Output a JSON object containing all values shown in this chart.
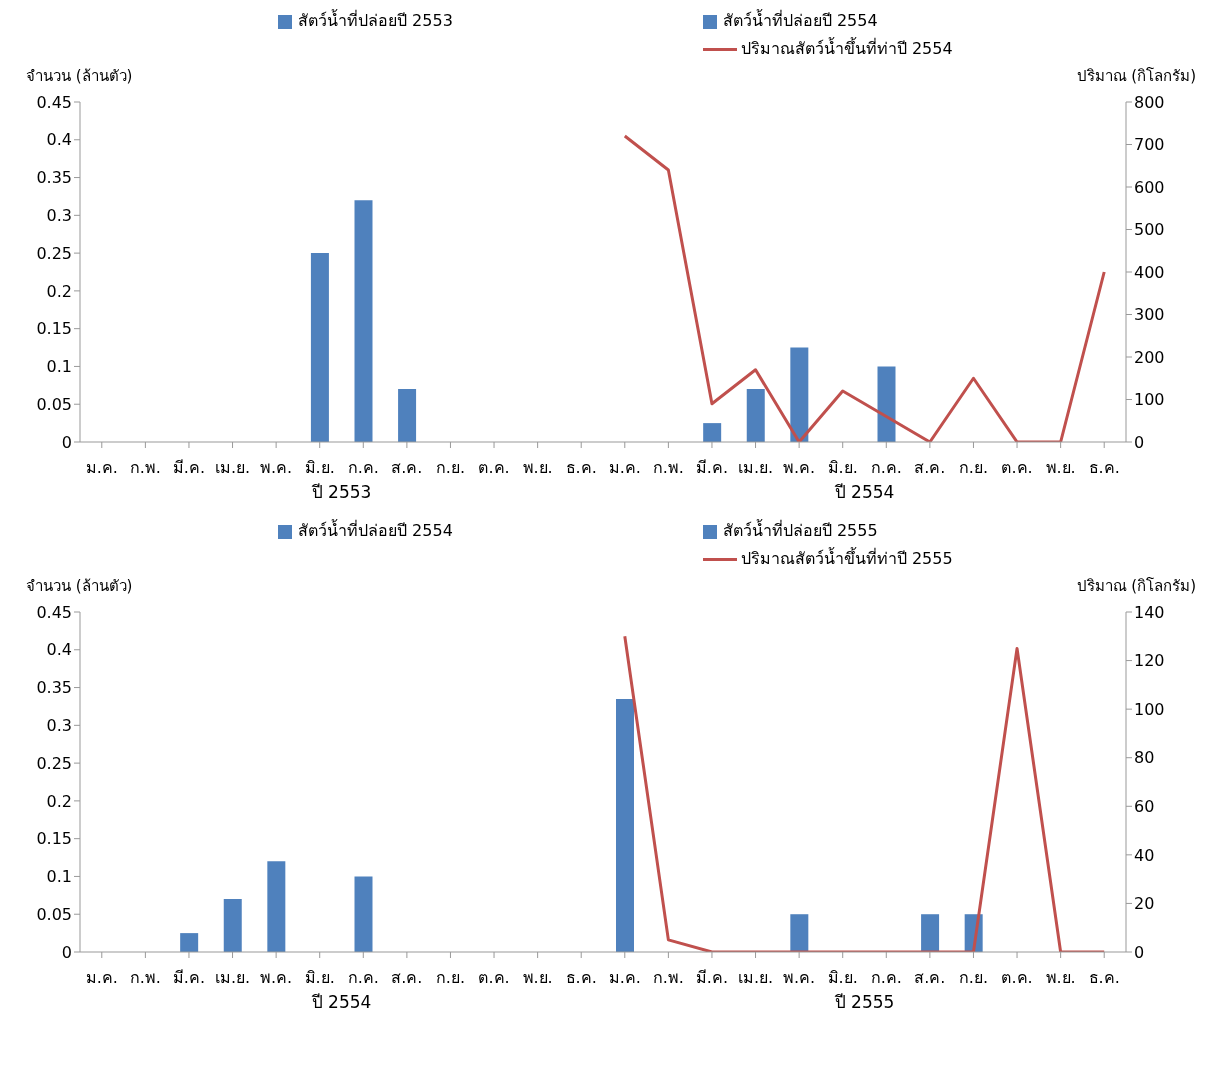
{
  "chart_data": [
    {
      "type": "bar",
      "categories": [
        "ม.ค.",
        "ก.พ.",
        "มี.ค.",
        "เม.ย.",
        "พ.ค.",
        "มิ.ย.",
        "ก.ค.",
        "ส.ค.",
        "ก.ย.",
        "ต.ค.",
        "พ.ย.",
        "ธ.ค.",
        "ม.ค.",
        "ก.พ.",
        "มี.ค.",
        "เม.ย.",
        "พ.ค.",
        "มิ.ย.",
        "ก.ค.",
        "ส.ค.",
        "ก.ย.",
        "ต.ค.",
        "พ.ย.",
        "ธ.ค."
      ],
      "series": [
        {
          "name": "สัตว์น้ำที่ปล่อยปี 2553",
          "color": "#4f81bd",
          "values": [
            0,
            0,
            0,
            0,
            0,
            0.25,
            0.32,
            0.07,
            0,
            0,
            0,
            0,
            null,
            null,
            null,
            null,
            null,
            null,
            null,
            null,
            null,
            null,
            null,
            null
          ]
        },
        {
          "name": "สัตว์น้ำที่ปล่อยปี 2554",
          "color": "#4f81bd",
          "values": [
            null,
            null,
            null,
            null,
            null,
            null,
            null,
            null,
            null,
            null,
            null,
            null,
            0,
            0,
            0.025,
            0.07,
            0.125,
            0,
            0.1,
            0,
            0,
            0,
            0,
            0
          ]
        },
        {
          "name": "ปริมาณสัตว์น้ำขึ้นที่ท่าปี 2554",
          "type": "line",
          "axis": "y2",
          "color": "#c0504d",
          "values": [
            null,
            null,
            null,
            null,
            null,
            null,
            null,
            null,
            null,
            null,
            null,
            null,
            720,
            640,
            90,
            170,
            0,
            120,
            60,
            0,
            150,
            0,
            0,
            400
          ]
        }
      ],
      "stacked": true,
      "ylabel": "จำนวน (ล้านตัว)",
      "y2label": "ปริมาณ (กิโลกรัม)",
      "ylim": [
        0,
        0.45
      ],
      "yticks": [
        0,
        0.05,
        0.1,
        0.15,
        0.2,
        0.25,
        0.3,
        0.35,
        0.4,
        0.45
      ],
      "y2lim": [
        0,
        800
      ],
      "y2ticks": [
        0,
        100,
        200,
        300,
        400,
        500,
        600,
        700,
        800
      ],
      "annotations": [
        "ปี 2553",
        "ปี 2554"
      ],
      "legend": "top",
      "grid": false
    },
    {
      "type": "bar",
      "categories": [
        "ม.ค.",
        "ก.พ.",
        "มี.ค.",
        "เม.ย.",
        "พ.ค.",
        "มิ.ย.",
        "ก.ค.",
        "ส.ค.",
        "ก.ย.",
        "ต.ค.",
        "พ.ย.",
        "ธ.ค.",
        "ม.ค.",
        "ก.พ.",
        "มี.ค.",
        "เม.ย.",
        "พ.ค.",
        "มิ.ย.",
        "ก.ค.",
        "ส.ค.",
        "ก.ย.",
        "ต.ค.",
        "พ.ย.",
        "ธ.ค."
      ],
      "series": [
        {
          "name": "สัตว์น้ำที่ปล่อยปี 2554",
          "color": "#4f81bd",
          "values": [
            0,
            0,
            0.025,
            0.07,
            0.12,
            0,
            0.1,
            0,
            0,
            0,
            0,
            0,
            null,
            null,
            null,
            null,
            null,
            null,
            null,
            null,
            null,
            null,
            null,
            null
          ]
        },
        {
          "name": "สัตว์น้ำที่ปล่อยปี 2555",
          "color": "#4f81bd",
          "values": [
            null,
            null,
            null,
            null,
            null,
            null,
            null,
            null,
            null,
            null,
            null,
            null,
            0.335,
            0,
            0,
            0,
            0.05,
            0,
            0,
            0.05,
            0.05,
            0,
            0,
            0
          ]
        },
        {
          "name": "ปริมาณสัตว์น้ำขึ้นที่ท่าปี 2555",
          "type": "line",
          "axis": "y2",
          "color": "#c0504d",
          "values": [
            null,
            null,
            null,
            null,
            null,
            null,
            null,
            null,
            null,
            null,
            null,
            null,
            130,
            5,
            0,
            0,
            0,
            0,
            0,
            0,
            0,
            125,
            0,
            0
          ]
        }
      ],
      "stacked": true,
      "ylabel": "จำนวน (ล้านตัว)",
      "y2label": "ปริมาณ (กิโลกรัม)",
      "ylim": [
        0,
        0.45
      ],
      "yticks": [
        0,
        0.05,
        0.1,
        0.15,
        0.2,
        0.25,
        0.3,
        0.35,
        0.4,
        0.45
      ],
      "y2lim": [
        0,
        140
      ],
      "y2ticks": [
        0,
        20,
        40,
        60,
        80,
        100,
        120,
        140
      ],
      "annotations": [
        "ปี 2554",
        "ปี 2555"
      ],
      "legend": "top",
      "grid": false
    }
  ]
}
